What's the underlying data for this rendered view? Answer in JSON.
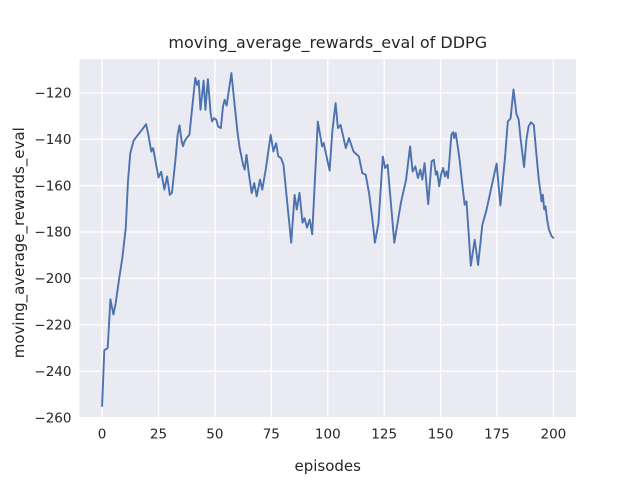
{
  "chart_data": {
    "type": "line",
    "title": "moving_average_rewards_eval of DDPG",
    "xlabel": "episodes",
    "ylabel": "moving_average_rewards_eval",
    "x_ticks": [
      0,
      25,
      50,
      75,
      100,
      125,
      150,
      175,
      200
    ],
    "y_ticks": [
      -120,
      -140,
      -160,
      -180,
      -200,
      -220,
      -240,
      -260
    ],
    "xlim": [
      -10,
      210
    ],
    "ylim": [
      -260.4,
      -105.4
    ],
    "grid": true,
    "legend": false,
    "style": {
      "figure_background": "#ffffff",
      "plot_background": "#eaeaf2",
      "grid_color": "#ffffff",
      "line_color": "#4c72b0",
      "text_color": "#262626"
    },
    "series": [
      {
        "name": "moving_average_rewards_eval",
        "color": "#4c72b0",
        "points": [
          [
            0,
            -255
          ],
          [
            1,
            -231
          ],
          [
            2.5,
            -230
          ],
          [
            3.7,
            -209
          ],
          [
            5,
            -215.5
          ],
          [
            6,
            -211
          ],
          [
            7.5,
            -200.5
          ],
          [
            9,
            -191
          ],
          [
            10.5,
            -178
          ],
          [
            11.5,
            -158
          ],
          [
            12.5,
            -146
          ],
          [
            14,
            -140.5
          ],
          [
            16,
            -138
          ],
          [
            18,
            -135.5
          ],
          [
            19.5,
            -133.5
          ],
          [
            20.5,
            -138
          ],
          [
            21.8,
            -145.3
          ],
          [
            22.6,
            -143.8
          ],
          [
            24,
            -151
          ],
          [
            25,
            -156.5
          ],
          [
            26.2,
            -154
          ],
          [
            27.6,
            -161.7
          ],
          [
            28.8,
            -156
          ],
          [
            30,
            -164
          ],
          [
            31,
            -163
          ],
          [
            32.5,
            -149
          ],
          [
            33.5,
            -138
          ],
          [
            34.3,
            -134
          ],
          [
            35.3,
            -141
          ],
          [
            35.9,
            -143
          ],
          [
            36.5,
            -141
          ],
          [
            37.5,
            -139.4
          ],
          [
            38.7,
            -138.1
          ],
          [
            41.3,
            -113.5
          ],
          [
            42.1,
            -116.6
          ],
          [
            42.8,
            -114.7
          ],
          [
            43.6,
            -127.3
          ],
          [
            45,
            -114.7
          ],
          [
            45.8,
            -127.3
          ],
          [
            46.9,
            -114.1
          ],
          [
            48.1,
            -128.7
          ],
          [
            48.7,
            -132.3
          ],
          [
            49.6,
            -130.9
          ],
          [
            50.6,
            -131.6
          ],
          [
            51.4,
            -134.5
          ],
          [
            52.6,
            -135.2
          ],
          [
            53.6,
            -125.9
          ],
          [
            54.3,
            -123
          ],
          [
            55.2,
            -125.5
          ],
          [
            57.3,
            -111.5
          ],
          [
            58.8,
            -125.9
          ],
          [
            60,
            -137
          ],
          [
            61,
            -143.8
          ],
          [
            62.5,
            -151
          ],
          [
            63.2,
            -153.1
          ],
          [
            64,
            -146.7
          ],
          [
            65.1,
            -155.3
          ],
          [
            66.3,
            -163.2
          ],
          [
            67.4,
            -158.9
          ],
          [
            68.5,
            -164.6
          ],
          [
            70,
            -157.4
          ],
          [
            71,
            -161.7
          ],
          [
            72.5,
            -153.1
          ],
          [
            74.7,
            -138.1
          ],
          [
            75.9,
            -145.3
          ],
          [
            77.1,
            -141.7
          ],
          [
            78.1,
            -147.4
          ],
          [
            79.3,
            -148.1
          ],
          [
            80.4,
            -151
          ],
          [
            83.8,
            -184.6
          ],
          [
            85.3,
            -164
          ],
          [
            86.3,
            -170.3
          ],
          [
            87.5,
            -163.1
          ],
          [
            88.8,
            -176
          ],
          [
            89.7,
            -174
          ],
          [
            90.8,
            -178.1
          ],
          [
            92,
            -174.6
          ],
          [
            93.1,
            -181
          ],
          [
            95.6,
            -132.4
          ],
          [
            97.5,
            -143.1
          ],
          [
            98.2,
            -141.6
          ],
          [
            99,
            -145.3
          ],
          [
            100.8,
            -153.5
          ],
          [
            102,
            -136.7
          ],
          [
            103.5,
            -124.4
          ],
          [
            104.5,
            -135.2
          ],
          [
            105.7,
            -133.8
          ],
          [
            108,
            -143.8
          ],
          [
            109.4,
            -139.5
          ],
          [
            111.4,
            -145.3
          ],
          [
            113.8,
            -147.4
          ],
          [
            115.3,
            -154.6
          ],
          [
            116.8,
            -155.3
          ],
          [
            118.3,
            -163.1
          ],
          [
            119.8,
            -174.6
          ],
          [
            120.9,
            -184.6
          ],
          [
            122.5,
            -176
          ],
          [
            124.4,
            -147.5
          ],
          [
            125.4,
            -152.4
          ],
          [
            126.5,
            -151
          ],
          [
            129.5,
            -184.6
          ],
          [
            132.4,
            -167.4
          ],
          [
            134.7,
            -157.4
          ],
          [
            136.5,
            -143.1
          ],
          [
            137.6,
            -153.9
          ],
          [
            138.8,
            -151.7
          ],
          [
            140,
            -156.7
          ],
          [
            141,
            -153.1
          ],
          [
            141.9,
            -157.4
          ],
          [
            142.9,
            -150.3
          ],
          [
            144.5,
            -168
          ],
          [
            146,
            -149.6
          ],
          [
            147,
            -148.8
          ],
          [
            147.9,
            -155.3
          ],
          [
            148.5,
            -153.9
          ],
          [
            149.4,
            -160.3
          ],
          [
            150.2,
            -155.3
          ],
          [
            151.1,
            -152.4
          ],
          [
            151.9,
            -156
          ],
          [
            152.6,
            -153.9
          ],
          [
            153.3,
            -156.7
          ],
          [
            154.8,
            -138.1
          ],
          [
            155.6,
            -136.9
          ],
          [
            156,
            -139.5
          ],
          [
            156.7,
            -137.3
          ],
          [
            157.8,
            -144.5
          ],
          [
            158.5,
            -149.6
          ],
          [
            159.7,
            -160.3
          ],
          [
            160.7,
            -168.2
          ],
          [
            161.5,
            -166.8
          ],
          [
            163.4,
            -194.5
          ],
          [
            165.1,
            -183.3
          ],
          [
            166.6,
            -194.2
          ],
          [
            168.5,
            -177
          ],
          [
            170.4,
            -170.3
          ],
          [
            172.6,
            -160.3
          ],
          [
            174.8,
            -150.5
          ],
          [
            176.5,
            -168.5
          ],
          [
            178.6,
            -147.4
          ],
          [
            179.8,
            -132.4
          ],
          [
            181,
            -131
          ],
          [
            182.3,
            -118.5
          ],
          [
            183.6,
            -129
          ],
          [
            184.6,
            -131.6
          ],
          [
            185.4,
            -139.5
          ],
          [
            187,
            -152
          ],
          [
            188,
            -140.2
          ],
          [
            189,
            -134.4
          ],
          [
            190,
            -132.7
          ],
          [
            191.3,
            -133.8
          ],
          [
            192,
            -141.6
          ],
          [
            192.8,
            -150.3
          ],
          [
            193.5,
            -157.4
          ],
          [
            194.3,
            -163.2
          ],
          [
            194.7,
            -166.8
          ],
          [
            195.3,
            -163.9
          ],
          [
            195.9,
            -170.3
          ],
          [
            196.5,
            -168.9
          ],
          [
            197.2,
            -174.6
          ],
          [
            198,
            -178.9
          ],
          [
            199.2,
            -181.8
          ],
          [
            200,
            -182.5
          ]
        ]
      }
    ]
  }
}
